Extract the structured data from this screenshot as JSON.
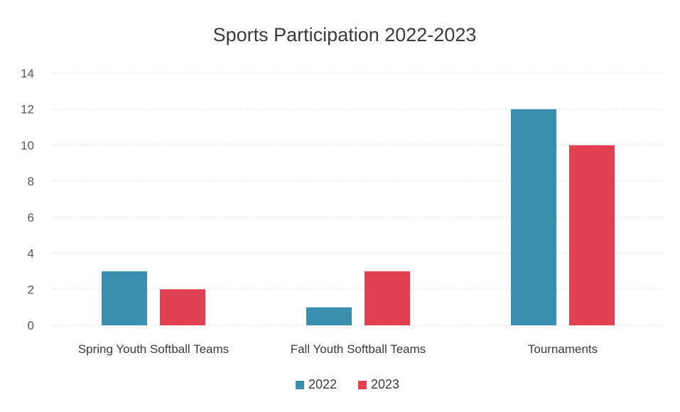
{
  "chart_data": {
    "type": "bar",
    "title": "Sports Participation 2022-2023",
    "categories": [
      "Spring Youth Softball Teams",
      "Fall Youth Softball Teams",
      "Tournaments"
    ],
    "series": [
      {
        "name": "2022",
        "values": [
          3,
          1,
          12
        ],
        "color": "#3a8fae"
      },
      {
        "name": "2023",
        "values": [
          2,
          3,
          10
        ],
        "color": "#e0404f"
      }
    ],
    "yticks": [
      "0",
      "2",
      "4",
      "6",
      "8",
      "10",
      "12",
      "14"
    ],
    "ylim": [
      0,
      14
    ],
    "grid": true,
    "legend_position": "bottom"
  }
}
